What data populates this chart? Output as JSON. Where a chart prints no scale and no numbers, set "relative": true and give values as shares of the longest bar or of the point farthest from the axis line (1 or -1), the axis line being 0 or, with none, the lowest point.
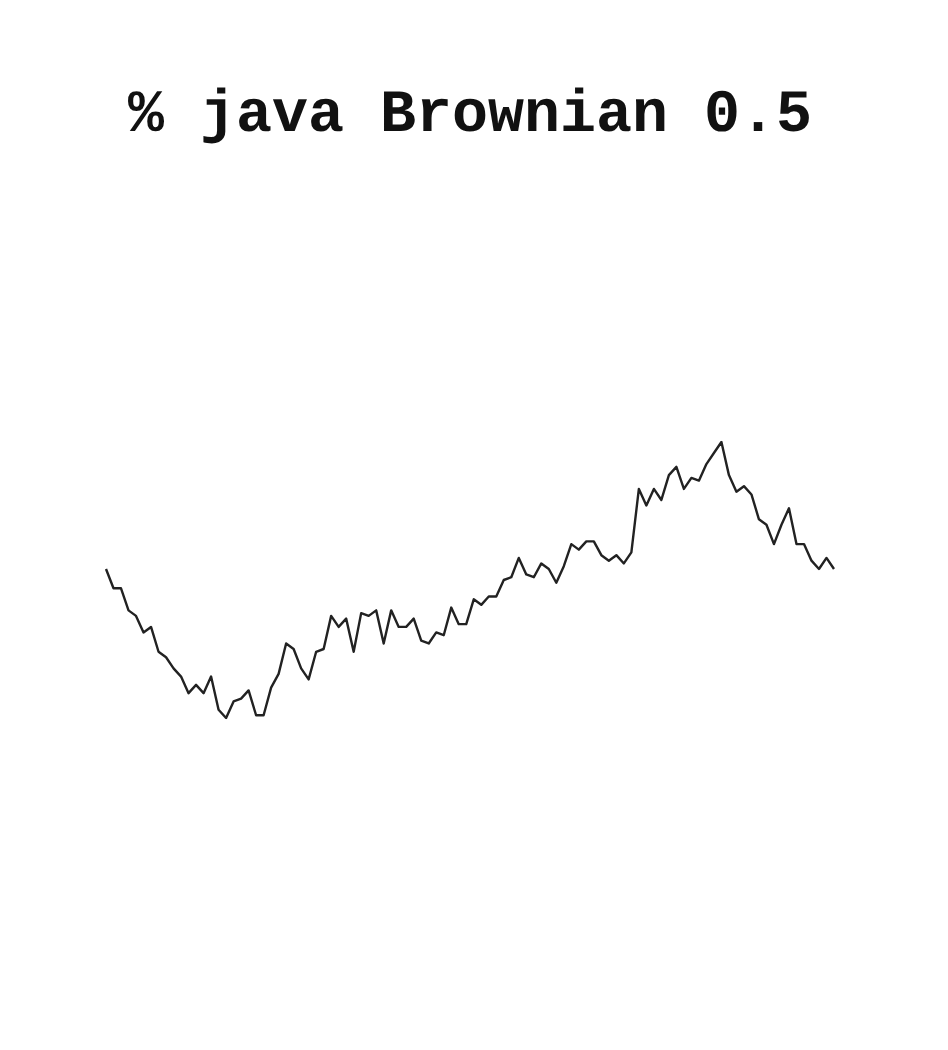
{
  "chart_data": {
    "type": "line",
    "title": "% java Brownian 0.5",
    "relative": true,
    "legend": false,
    "marker": "none",
    "line_style": "solid",
    "categories": [
      null,
      null,
      null,
      null,
      null,
      null,
      null,
      null,
      null,
      null,
      null,
      null,
      null,
      null,
      null,
      null,
      null,
      null,
      null,
      null,
      null,
      null,
      null,
      null,
      null,
      null,
      null,
      null,
      null,
      null,
      null,
      null,
      null,
      null,
      null,
      null,
      null,
      null,
      null,
      null,
      null,
      null,
      null,
      null,
      null,
      null,
      null,
      null,
      null,
      null,
      null,
      null,
      null,
      null,
      null,
      null,
      null,
      null,
      null,
      null,
      null,
      null,
      null,
      null,
      null,
      null,
      null,
      null,
      null,
      null,
      null,
      null,
      null,
      null,
      null,
      null,
      null,
      null,
      null,
      null,
      null,
      null,
      null,
      null,
      null,
      null,
      null,
      null,
      null,
      null,
      null,
      null,
      null,
      null,
      null,
      null,
      null,
      null
    ],
    "series": [
      {
        "color": "#222222",
        "values": [
          0.54,
          0.47,
          0.47,
          0.39,
          0.37,
          0.31,
          0.33,
          0.24,
          0.22,
          0.18,
          0.15,
          0.09,
          0.12,
          0.09,
          0.15,
          0.03,
          0,
          0.06,
          0.07,
          0.1,
          0.01,
          0.01,
          0.11,
          0.16,
          0.27,
          0.25,
          0.18,
          0.14,
          0.24,
          0.25,
          0.37,
          0.33,
          0.36,
          0.24,
          0.38,
          0.37,
          0.39,
          0.27,
          0.39,
          0.33,
          0.33,
          0.36,
          0.28,
          0.27,
          0.31,
          0.3,
          0.4,
          0.34,
          0.34,
          0.43,
          0.41,
          0.44,
          0.44,
          0.5,
          0.51,
          0.58,
          0.52,
          0.51,
          0.56,
          0.54,
          0.49,
          0.55,
          0.63,
          0.61,
          0.64,
          0.64,
          0.59,
          0.57,
          0.59,
          0.56,
          0.6,
          0.83,
          0.77,
          0.83,
          0.79,
          0.88,
          0.91,
          0.83,
          0.87,
          0.86,
          0.92,
          0.96,
          1,
          0.88,
          0.82,
          0.84,
          0.81,
          0.72,
          0.7,
          0.63,
          0.7,
          0.76,
          0.63,
          0.63,
          0.57,
          0.54,
          0.58,
          0.54
        ]
      }
    ]
  }
}
